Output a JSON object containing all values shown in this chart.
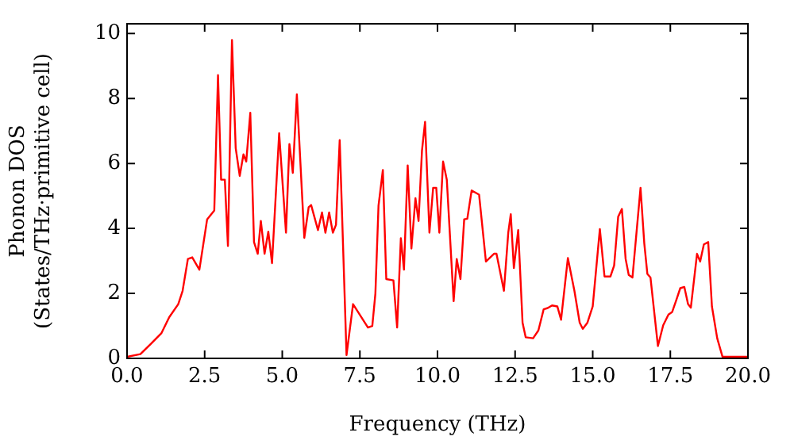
{
  "chart_data": {
    "type": "line",
    "xlabel": "Frequency (THz)",
    "ylabel": "Phonon DOS\n(States/THz·primitive cell)",
    "xlim": [
      0,
      20
    ],
    "ylim": [
      0,
      10.3
    ],
    "xticks": [
      {
        "value": 0,
        "label": "0.0"
      },
      {
        "value": 2.5,
        "label": "2.5"
      },
      {
        "value": 5,
        "label": "5.0"
      },
      {
        "value": 7.5,
        "label": "7.5"
      },
      {
        "value": 10,
        "label": "10.0"
      },
      {
        "value": 12.5,
        "label": "12.5"
      },
      {
        "value": 15,
        "label": "15.0"
      },
      {
        "value": 17.5,
        "label": "17.5"
      },
      {
        "value": 20,
        "label": "20.0"
      }
    ],
    "yticks": [
      0,
      2,
      4,
      6,
      8,
      10
    ],
    "series": [
      {
        "color": "#ff0000",
        "x": [
          0,
          0.43,
          0.77,
          1.11,
          1.36,
          1.65,
          1.79,
          1.96,
          2.1,
          2.33,
          2.58,
          2.81,
          2.93,
          3.03,
          3.15,
          3.25,
          3.38,
          3.5,
          3.63,
          3.75,
          3.84,
          3.97,
          4.09,
          4.21,
          4.31,
          4.43,
          4.55,
          4.67,
          4.9,
          5.12,
          5.23,
          5.34,
          5.47,
          5.71,
          5.85,
          5.93,
          6.15,
          6.28,
          6.39,
          6.51,
          6.63,
          6.73,
          6.85,
          7.07,
          7.28,
          7.76,
          7.9,
          8.0,
          8.1,
          8.24,
          8.35,
          8.58,
          8.7,
          8.82,
          8.92,
          9.04,
          9.16,
          9.29,
          9.39,
          9.5,
          9.6,
          9.74,
          9.86,
          9.96,
          10.06,
          10.18,
          10.3,
          10.52,
          10.62,
          10.74,
          10.86,
          10.96,
          11.1,
          11.34,
          11.56,
          11.82,
          11.9,
          12.14,
          12.28,
          12.36,
          12.46,
          12.6,
          12.74,
          12.84,
          13.08,
          13.25,
          13.42,
          13.55,
          13.69,
          13.86,
          13.98,
          14.2,
          14.41,
          14.58,
          14.68,
          14.83,
          15.0,
          15.23,
          15.38,
          15.57,
          15.69,
          15.82,
          15.94,
          16.06,
          16.16,
          16.28,
          16.54,
          16.66,
          16.76,
          16.86,
          17.1,
          17.27,
          17.44,
          17.56,
          17.68,
          17.82,
          17.95,
          18.07,
          18.16,
          18.36,
          18.46,
          18.58,
          18.72,
          18.84,
          19.01,
          19.18,
          20
        ],
        "values": [
          0.05,
          0.13,
          0.45,
          0.78,
          1.27,
          1.67,
          2.08,
          3.06,
          3.11,
          2.73,
          4.28,
          4.55,
          8.72,
          5.5,
          5.5,
          3.46,
          9.8,
          6.47,
          5.62,
          6.28,
          6.06,
          7.56,
          3.58,
          3.22,
          4.23,
          3.22,
          3.9,
          2.93,
          6.93,
          3.87,
          6.6,
          5.71,
          8.13,
          3.71,
          4.65,
          4.72,
          3.95,
          4.49,
          3.87,
          4.49,
          3.87,
          4.11,
          6.72,
          0.1,
          1.67,
          0.95,
          1.0,
          2.0,
          4.7,
          5.8,
          2.44,
          2.4,
          0.95,
          3.7,
          2.73,
          5.94,
          3.38,
          4.93,
          4.23,
          6.39,
          7.28,
          3.87,
          5.25,
          5.25,
          3.87,
          6.06,
          5.5,
          1.76,
          3.06,
          2.44,
          4.28,
          4.3,
          5.17,
          5.04,
          2.98,
          3.22,
          3.22,
          2.08,
          3.87,
          4.44,
          2.78,
          3.95,
          1.1,
          0.65,
          0.62,
          0.86,
          1.51,
          1.55,
          1.63,
          1.6,
          1.19,
          3.09,
          2.08,
          1.1,
          0.91,
          1.1,
          1.6,
          3.98,
          2.52,
          2.52,
          2.86,
          4.36,
          4.6,
          3.06,
          2.57,
          2.49,
          5.25,
          3.55,
          2.6,
          2.49,
          0.38,
          1.02,
          1.35,
          1.43,
          1.76,
          2.16,
          2.2,
          1.67,
          1.56,
          3.22,
          2.98,
          3.51,
          3.58,
          1.6,
          0.62,
          0.05,
          0.05
        ]
      }
    ]
  }
}
